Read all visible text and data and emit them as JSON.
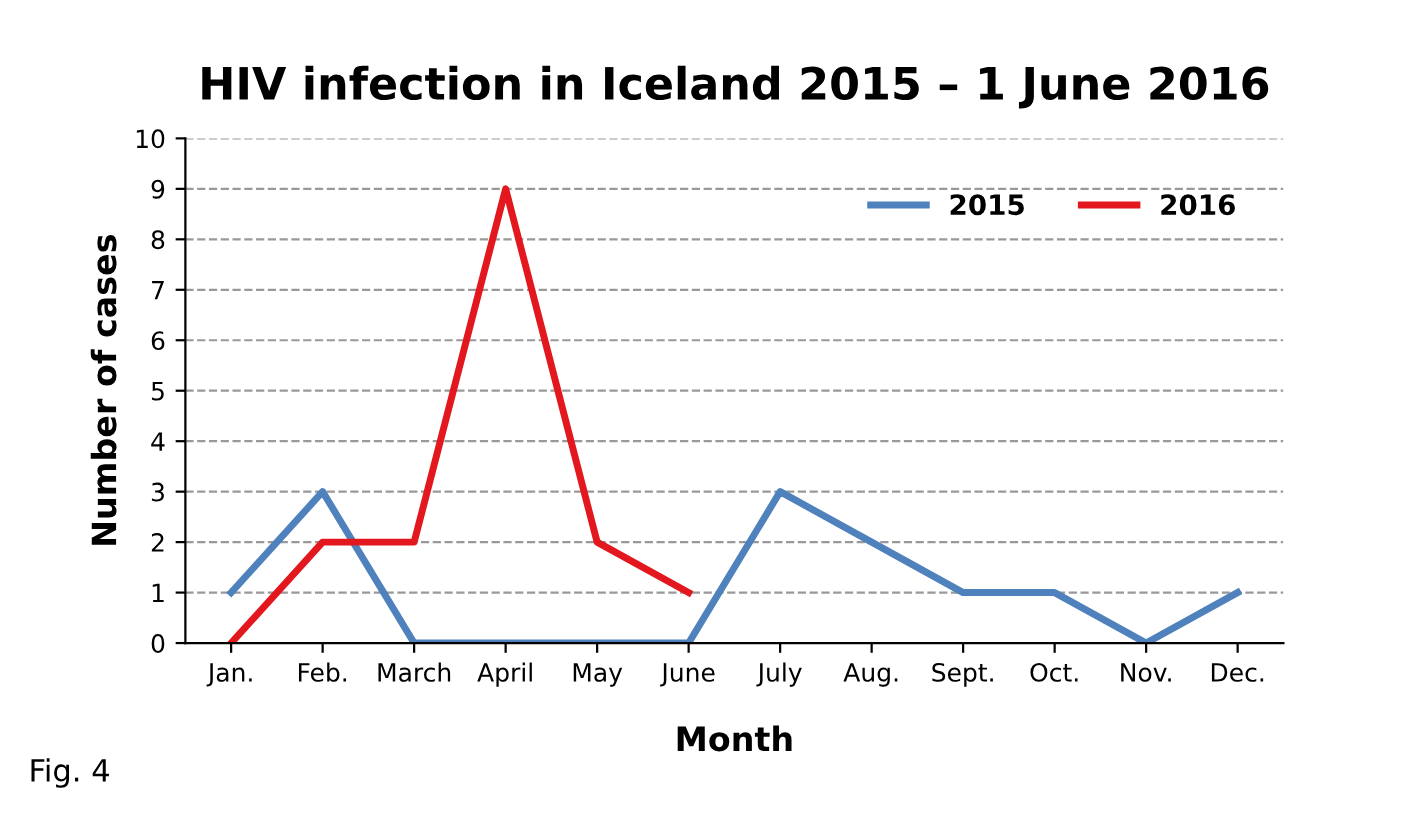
{
  "chart_data": {
    "type": "line",
    "title": "HIV infection in Iceland 2015 – 1 June 2016",
    "xlabel": "Month",
    "ylabel": "Number of cases",
    "categories": [
      "Jan.",
      "Feb.",
      "March",
      "April",
      "May",
      "June",
      "July",
      "Aug.",
      "Sept.",
      "Oct.",
      "Nov.",
      "Dec."
    ],
    "series": [
      {
        "name": "2015",
        "color": "#4f81bd",
        "values": [
          1,
          3,
          0,
          0,
          0,
          0,
          3,
          2,
          1,
          1,
          0,
          1
        ]
      },
      {
        "name": "2016",
        "color": "#e3171e",
        "values": [
          0,
          2,
          2,
          9,
          2,
          1,
          null,
          null,
          null,
          null,
          null,
          null
        ]
      }
    ],
    "ylim": [
      0,
      10
    ],
    "yticks": [
      0,
      1,
      2,
      3,
      4,
      5,
      6,
      7,
      8,
      9,
      10
    ],
    "grid": "y",
    "line_style": "solid",
    "marker": "none",
    "legend": "top right",
    "annotations": [
      "Fig. 4"
    ]
  }
}
